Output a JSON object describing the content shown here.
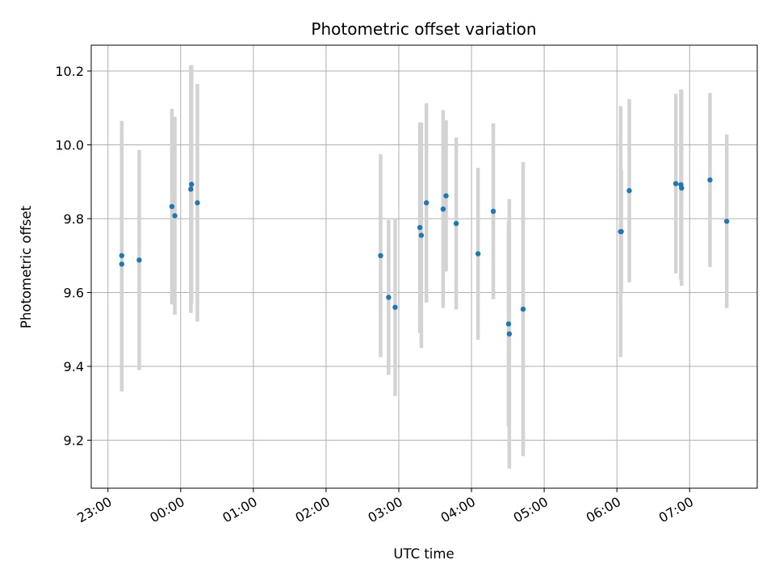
{
  "chart_data": {
    "type": "scatter",
    "title": "Photometric offset variation",
    "xlabel": "UTC time",
    "ylabel": "Photometric offset",
    "x_tick_labels": [
      "23:00",
      "00:00",
      "01:00",
      "02:00",
      "03:00",
      "04:00",
      "05:00",
      "06:00",
      "07:00"
    ],
    "x_tick_hours": [
      0,
      1,
      2,
      3,
      4,
      5,
      6,
      7,
      8
    ],
    "xlim_hours": [
      -0.23,
      8.93
    ],
    "y_ticks": [
      9.2,
      9.4,
      9.6,
      9.8,
      10.0,
      10.2
    ],
    "y_tick_labels": [
      "9.2",
      "9.4",
      "9.6",
      "9.8",
      "10.0",
      "10.2"
    ],
    "ylim": [
      9.07,
      10.27
    ],
    "grid": true,
    "point_color": "#1f77b4",
    "errorbar_color": "#d3d3d3",
    "points": [
      {
        "t": 0.19,
        "y": 9.677,
        "err": 0.345
      },
      {
        "t": 0.19,
        "y": 9.7,
        "err": 0.365
      },
      {
        "t": 0.43,
        "y": 9.688,
        "err": 0.298
      },
      {
        "t": 0.88,
        "y": 9.833,
        "err": 0.265
      },
      {
        "t": 0.92,
        "y": 9.808,
        "err": 0.268
      },
      {
        "t": 1.14,
        "y": 9.88,
        "err": 0.335
      },
      {
        "t": 1.15,
        "y": 9.893,
        "err": 0.323
      },
      {
        "t": 1.23,
        "y": 9.843,
        "err": 0.322
      },
      {
        "t": 3.75,
        "y": 9.7,
        "err": 0.275
      },
      {
        "t": 3.86,
        "y": 9.587,
        "err": 0.21
      },
      {
        "t": 3.95,
        "y": 9.56,
        "err": 0.24
      },
      {
        "t": 4.29,
        "y": 9.776,
        "err": 0.285
      },
      {
        "t": 4.31,
        "y": 9.755,
        "err": 0.305
      },
      {
        "t": 4.38,
        "y": 9.843,
        "err": 0.27
      },
      {
        "t": 4.61,
        "y": 9.826,
        "err": 0.268
      },
      {
        "t": 4.65,
        "y": 9.862,
        "err": 0.205
      },
      {
        "t": 4.79,
        "y": 9.787,
        "err": 0.233
      },
      {
        "t": 5.09,
        "y": 9.705,
        "err": 0.233
      },
      {
        "t": 5.3,
        "y": 9.82,
        "err": 0.238
      },
      {
        "t": 5.51,
        "y": 9.515,
        "err": 0.278
      },
      {
        "t": 5.52,
        "y": 9.488,
        "err": 0.365
      },
      {
        "t": 5.71,
        "y": 9.555,
        "err": 0.398
      },
      {
        "t": 7.05,
        "y": 9.765,
        "err": 0.34
      },
      {
        "t": 7.06,
        "y": 9.765,
        "err": 0.168
      },
      {
        "t": 7.17,
        "y": 9.876,
        "err": 0.248
      },
      {
        "t": 7.81,
        "y": 9.895,
        "err": 0.243
      },
      {
        "t": 7.88,
        "y": 9.892,
        "err": 0.258
      },
      {
        "t": 7.89,
        "y": 9.883,
        "err": 0.265
      },
      {
        "t": 8.28,
        "y": 9.905,
        "err": 0.236
      },
      {
        "t": 8.51,
        "y": 9.793,
        "err": 0.235
      }
    ]
  }
}
